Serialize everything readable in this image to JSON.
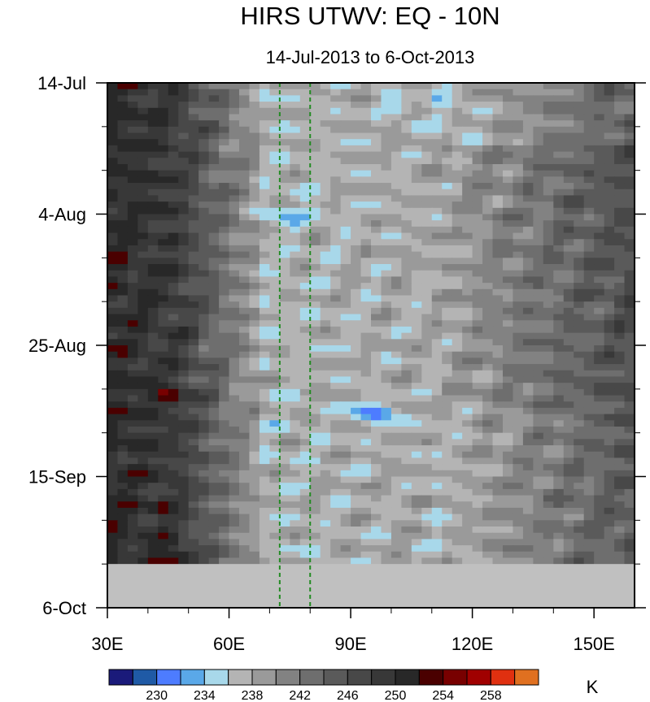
{
  "chart_data": {
    "type": "heatmap",
    "title": "HIRS UTWV: EQ - 10N",
    "subtitle": "14-Jul-2013 to 6-Oct-2013",
    "x_ticks": [
      {
        "label": "30E",
        "value": 30
      },
      {
        "label": "60E",
        "value": 60
      },
      {
        "label": "90E",
        "value": 90
      },
      {
        "label": "120E",
        "value": 120
      },
      {
        "label": "150E",
        "value": 150
      }
    ],
    "xlim": [
      30,
      160
    ],
    "y_ticks": [
      {
        "label": "14-Jul",
        "day": 0
      },
      {
        "label": "4-Aug",
        "day": 21
      },
      {
        "label": "25-Aug",
        "day": 42
      },
      {
        "label": "15-Sep",
        "day": 63
      },
      {
        "label": "6-Oct",
        "day": 84
      }
    ],
    "ylim_days": [
      0,
      84
    ],
    "data_end_day": 77,
    "reference_lines_lon": [
      72.5,
      80
    ],
    "colorbar": {
      "unit": "K",
      "levels": [
        228,
        230,
        232,
        234,
        236,
        238,
        240,
        242,
        244,
        246,
        248,
        250,
        252,
        254,
        256,
        258
      ],
      "labels": [
        "230",
        "234",
        "238",
        "242",
        "246",
        "250",
        "254",
        "258"
      ],
      "colors": [
        "#1a1a7a",
        "#1f5aa6",
        "#4d7cff",
        "#5aa8e8",
        "#a8d8ea",
        "#b4b4b4",
        "#9a9a9a",
        "#828282",
        "#6e6e6e",
        "#5a5a5a",
        "#484848",
        "#383838",
        "#282828",
        "#4a0000",
        "#780000",
        "#a00000",
        "#e03010",
        "#e07020"
      ]
    },
    "colors": {
      "missing": "#c0c0c0",
      "reference_line": "#228B22"
    }
  }
}
